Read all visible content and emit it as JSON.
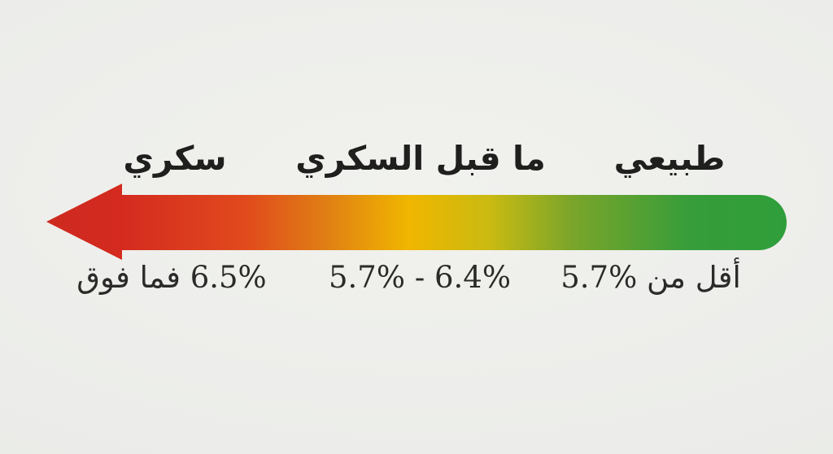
{
  "scale": {
    "orientation": "right-to-left",
    "arrow_points": "left",
    "categories": [
      {
        "key": "diabetes",
        "label": "سكري",
        "range": "6.5% فما فوق",
        "color": "#d42a1f"
      },
      {
        "key": "prediabetes",
        "label": "ما قبل السكري",
        "range": "5.7% - 6.4%",
        "color": "#f0b600"
      },
      {
        "key": "normal",
        "label": "طبيعي",
        "range": "أقل من %5.7",
        "color": "#2f9e3a"
      }
    ],
    "gradient_stops": [
      {
        "offset": "0%",
        "color": "#ce2a20"
      },
      {
        "offset": "10%",
        "color": "#d42a1f"
      },
      {
        "offset": "27%",
        "color": "#e14a1d"
      },
      {
        "offset": "38%",
        "color": "#e08014"
      },
      {
        "offset": "49%",
        "color": "#f0b600"
      },
      {
        "offset": "60%",
        "color": "#c9ba12"
      },
      {
        "offset": "71%",
        "color": "#7aa52a"
      },
      {
        "offset": "87%",
        "color": "#369d3a"
      },
      {
        "offset": "100%",
        "color": "#2f9e3a"
      }
    ],
    "background_color": "#ecedea",
    "text_color": "#1f1f1d"
  }
}
